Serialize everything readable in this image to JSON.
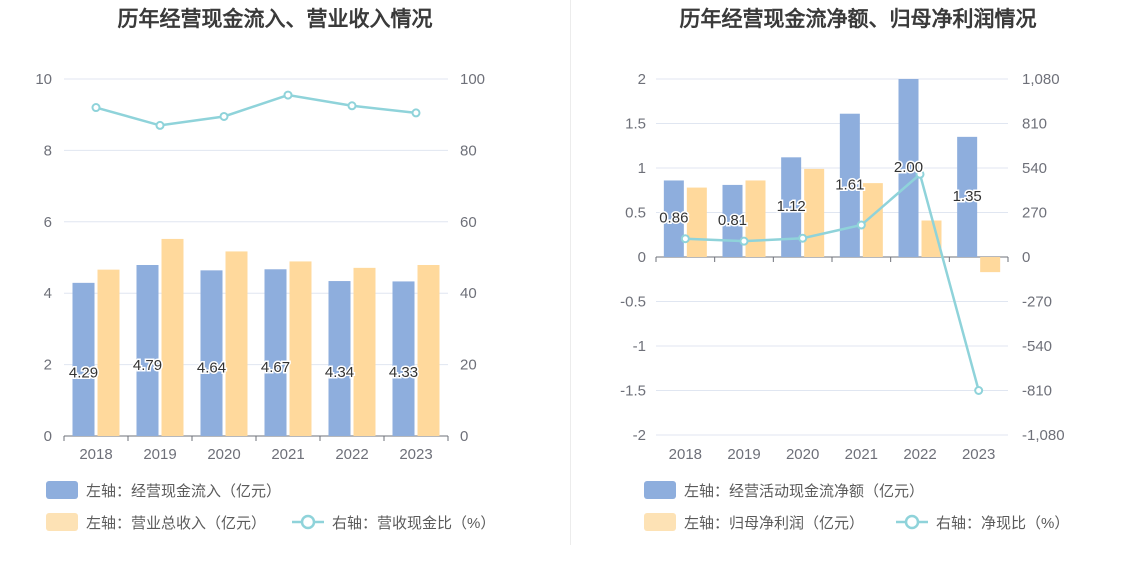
{
  "charts": [
    {
      "legend": {
        "items": [
          {
            "label": "左轴：经营现金流入（亿元）",
            "kind": "bar",
            "color": "#8eaedd"
          },
          {
            "label": "左轴：营业总收入（亿元）",
            "kind": "bar",
            "color": "#fde2b5"
          },
          {
            "label": "右轴：营收现金比（%）",
            "kind": "line",
            "color": "#8fd3da"
          }
        ]
      }
    },
    {
      "legend": {
        "items": [
          {
            "label": "左轴：经营活动现金流净额（亿元）",
            "kind": "bar",
            "color": "#8eaedd"
          },
          {
            "label": "左轴：归母净利润（亿元）",
            "kind": "bar",
            "color": "#fde2b5"
          },
          {
            "label": "右轴：净现比（%）",
            "kind": "line",
            "color": "#8fd3da"
          }
        ]
      }
    }
  ],
  "chart_data": [
    {
      "type": "bar",
      "title": "历年经营现金流入、营业收入情况",
      "categories": [
        "2018",
        "2019",
        "2020",
        "2021",
        "2022",
        "2023"
      ],
      "ylim_left": [
        0,
        10
      ],
      "yticks_left": [
        "0",
        "2",
        "4",
        "6",
        "8",
        "10"
      ],
      "ylim_right": [
        0,
        100
      ],
      "yticks_right": [
        "0",
        "20",
        "40",
        "60",
        "80",
        "100"
      ],
      "grid": true,
      "legend_position": "bottom-left",
      "series": [
        {
          "name": "左轴：经营现金流入（亿元）",
          "axis": "left",
          "type": "bar",
          "color": "#8eaedd",
          "values": [
            4.29,
            4.79,
            4.64,
            4.67,
            4.34,
            4.33
          ],
          "labels": [
            "4.29",
            "4.79",
            "4.64",
            "4.67",
            "4.34",
            "4.33"
          ]
        },
        {
          "name": "左轴：营业总收入（亿元）",
          "axis": "left",
          "type": "bar",
          "color": "#ffd99c",
          "values": [
            4.66,
            5.52,
            5.17,
            4.89,
            4.71,
            4.79
          ]
        },
        {
          "name": "右轴：营收现金比（%）",
          "axis": "right",
          "type": "line",
          "color": "#8fd3da",
          "values": [
            92,
            87,
            89.5,
            95.5,
            92.5,
            90.5
          ]
        }
      ]
    },
    {
      "type": "bar",
      "title": "历年经营现金流净额、归母净利润情况",
      "categories": [
        "2018",
        "2019",
        "2020",
        "2021",
        "2022",
        "2023"
      ],
      "ylim_left": [
        -2,
        2
      ],
      "yticks_left": [
        "-2",
        "-1.5",
        "-1",
        "-0.5",
        "0",
        "0.5",
        "1",
        "1.5",
        "2"
      ],
      "ylim_right": [
        -1080,
        1080
      ],
      "yticks_right": [
        "-1,080",
        "-810",
        "-540",
        "-270",
        "0",
        "270",
        "540",
        "810",
        "1,080"
      ],
      "grid": true,
      "legend_position": "bottom-left",
      "series": [
        {
          "name": "左轴：经营活动现金流净额（亿元）",
          "axis": "left",
          "type": "bar",
          "color": "#8eaedd",
          "values": [
            0.86,
            0.81,
            1.12,
            1.61,
            2.0,
            1.35
          ],
          "labels": [
            "0.86",
            "0.81",
            "1.12",
            "1.61",
            "2.00",
            "1.35"
          ]
        },
        {
          "name": "左轴：归母净利润（亿元）",
          "axis": "left",
          "type": "bar",
          "color": "#ffd99c",
          "values": [
            0.78,
            0.86,
            0.99,
            0.83,
            0.41,
            -0.17
          ]
        },
        {
          "name": "右轴：净现比（%）",
          "axis": "right",
          "type": "line",
          "color": "#8fd3da",
          "values": [
            111,
            96,
            114,
            194,
            502,
            -810
          ]
        }
      ]
    }
  ]
}
